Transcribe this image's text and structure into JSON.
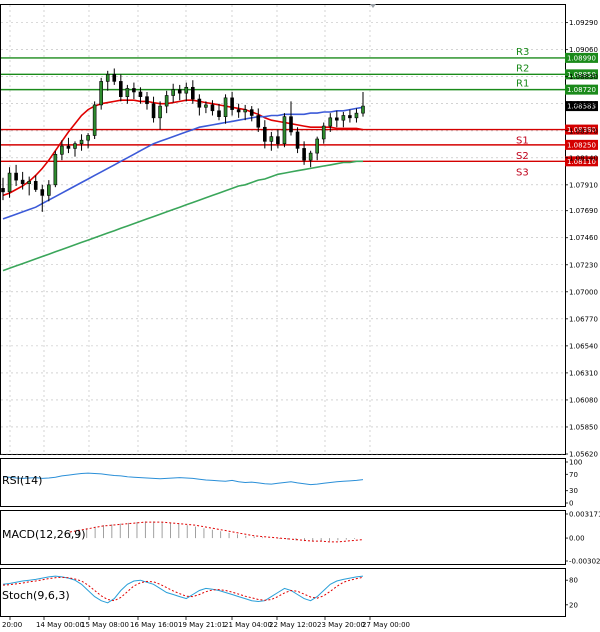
{
  "chart_data": {
    "type": "candlestick",
    "price_axis": {
      "ticks": [
        "1.09290",
        "1.09060",
        "1.08830",
        "1.08600",
        "1.08370",
        "1.08140",
        "1.07910",
        "1.07690",
        "1.07460",
        "1.07230",
        "1.07000",
        "1.06770",
        "1.06540",
        "1.06310",
        "1.06080",
        "1.05850",
        "1.05620"
      ],
      "ylim": [
        1.0562,
        1.0944
      ]
    },
    "time_axis": {
      "ticks": [
        "20:00",
        "14 May 00:00",
        "15 May 08:00",
        "16 May 16:00",
        "19 May 21:01",
        "21 May 04:00",
        "22 May 12:00",
        "23 May 20:00",
        "27 May 00:00"
      ]
    },
    "current_price": "1.08583",
    "levels": [
      {
        "name": "R3",
        "price": 1.0899,
        "label": "1.08990",
        "color": "#1a8a1a"
      },
      {
        "name": "R2",
        "price": 1.0885,
        "label": "1.08850",
        "color": "#1a8a1a"
      },
      {
        "name": "R1",
        "price": 1.0872,
        "label": "1.08720",
        "color": "#1a8a1a"
      },
      {
        "name": "S1",
        "price": 1.0838,
        "label": "1.08380",
        "color": "#d40000"
      },
      {
        "name": "S2",
        "price": 1.0825,
        "label": "1.08250",
        "color": "#d40000"
      },
      {
        "name": "S3",
        "price": 1.0811,
        "label": "1.08110",
        "color": "#d40000"
      }
    ],
    "candles": [
      [
        1.0788,
        1.0797,
        1.0778,
        1.0785
      ],
      [
        1.0785,
        1.0806,
        1.078,
        1.0801
      ],
      [
        1.0801,
        1.0808,
        1.079,
        1.0795
      ],
      [
        1.0795,
        1.0802,
        1.0787,
        1.0792
      ],
      [
        1.0792,
        1.0798,
        1.0782,
        1.0794
      ],
      [
        1.0794,
        1.0799,
        1.0785,
        1.0787
      ],
      [
        1.0787,
        1.0791,
        1.0768,
        1.0782
      ],
      [
        1.0782,
        1.0795,
        1.0777,
        1.0791
      ],
      [
        1.0791,
        1.082,
        1.0789,
        1.0817
      ],
      [
        1.0817,
        1.0829,
        1.0812,
        1.0824
      ],
      [
        1.0824,
        1.0831,
        1.0818,
        1.0822
      ],
      [
        1.0822,
        1.0828,
        1.0815,
        1.0826
      ],
      [
        1.0826,
        1.0834,
        1.082,
        1.0829
      ],
      [
        1.0829,
        1.0835,
        1.0822,
        1.0833
      ],
      [
        1.0833,
        1.0862,
        1.083,
        1.0859
      ],
      [
        1.0859,
        1.0882,
        1.0855,
        1.0879
      ],
      [
        1.0879,
        1.0888,
        1.0871,
        1.0885
      ],
      [
        1.0885,
        1.089,
        1.0876,
        1.0879
      ],
      [
        1.0879,
        1.0885,
        1.0862,
        1.0866
      ],
      [
        1.0866,
        1.0876,
        1.086,
        1.0873
      ],
      [
        1.0873,
        1.0878,
        1.0864,
        1.087
      ],
      [
        1.087,
        1.0874,
        1.086,
        1.0866
      ],
      [
        1.0866,
        1.087,
        1.0855,
        1.086
      ],
      [
        1.086,
        1.0866,
        1.0844,
        1.0848
      ],
      [
        1.0848,
        1.0862,
        1.0838,
        1.0858
      ],
      [
        1.0858,
        1.0871,
        1.0852,
        1.0867
      ],
      [
        1.0867,
        1.0877,
        1.0861,
        1.0872
      ],
      [
        1.0872,
        1.0876,
        1.0863,
        1.0869
      ],
      [
        1.0869,
        1.0878,
        1.0862,
        1.0874
      ],
      [
        1.0874,
        1.088,
        1.086,
        1.0864
      ],
      [
        1.0864,
        1.0868,
        1.085,
        1.0857
      ],
      [
        1.0857,
        1.0862,
        1.0852,
        1.0859
      ],
      [
        1.0859,
        1.0863,
        1.085,
        1.0854
      ],
      [
        1.0854,
        1.086,
        1.0846,
        1.0849
      ],
      [
        1.0849,
        1.0868,
        1.0843,
        1.0865
      ],
      [
        1.0865,
        1.087,
        1.085,
        1.0855
      ],
      [
        1.0855,
        1.086,
        1.0848,
        1.0853
      ],
      [
        1.0853,
        1.0859,
        1.0846,
        1.0855
      ],
      [
        1.0855,
        1.0858,
        1.0845,
        1.085
      ],
      [
        1.085,
        1.0856,
        1.0836,
        1.084
      ],
      [
        1.084,
        1.0846,
        1.0822,
        1.0828
      ],
      [
        1.0828,
        1.0836,
        1.082,
        1.0832
      ],
      [
        1.0832,
        1.0838,
        1.0822,
        1.0826
      ],
      [
        1.0826,
        1.0852,
        1.0823,
        1.0849
      ],
      [
        1.0849,
        1.0862,
        1.0833,
        1.0836
      ],
      [
        1.0836,
        1.084,
        1.0818,
        1.0822
      ],
      [
        1.0822,
        1.0828,
        1.0808,
        1.0812
      ],
      [
        1.0812,
        1.082,
        1.0806,
        1.0818
      ],
      [
        1.0818,
        1.0832,
        1.0812,
        1.083
      ],
      [
        1.083,
        1.0844,
        1.0826,
        1.0841
      ],
      [
        1.0841,
        1.0852,
        1.0836,
        1.0848
      ],
      [
        1.0848,
        1.0854,
        1.084,
        1.0846
      ],
      [
        1.0846,
        1.0853,
        1.084,
        1.085
      ],
      [
        1.085,
        1.0855,
        1.0844,
        1.0848
      ],
      [
        1.0848,
        1.0856,
        1.0844,
        1.0852
      ],
      [
        1.0852,
        1.087,
        1.0849,
        1.0858
      ]
    ],
    "moving_averages": [
      {
        "color": "#e00000",
        "values": [
          1.0782,
          1.0784,
          1.0787,
          1.079,
          1.0794,
          1.0799,
          1.0805,
          1.0812,
          1.082,
          1.0828,
          1.0836,
          1.0843,
          1.085,
          1.0855,
          1.0858,
          1.086,
          1.0861,
          1.0862,
          1.0863,
          1.0863,
          1.0863,
          1.0862,
          1.0862,
          1.0861,
          1.086,
          1.086,
          1.0861,
          1.0862,
          1.0863,
          1.0863,
          1.0862,
          1.0861,
          1.086,
          1.0859,
          1.0858,
          1.0857,
          1.0856,
          1.0855,
          1.0853,
          1.0851,
          1.0848,
          1.0846,
          1.0845,
          1.0844,
          1.0843,
          1.0842,
          1.0841,
          1.084,
          1.084,
          1.084,
          1.084,
          1.0839,
          1.0839,
          1.0839,
          1.0839,
          1.0838
        ]
      },
      {
        "color": "#3c5ad8",
        "values": [
          1.0762,
          1.0764,
          1.0766,
          1.0768,
          1.077,
          1.0772,
          1.0775,
          1.0778,
          1.0781,
          1.0784,
          1.0787,
          1.079,
          1.0793,
          1.0796,
          1.0799,
          1.0802,
          1.0805,
          1.0808,
          1.0811,
          1.0814,
          1.0817,
          1.082,
          1.0823,
          1.0826,
          1.0828,
          1.083,
          1.0832,
          1.0834,
          1.0836,
          1.0838,
          1.084,
          1.0841,
          1.0842,
          1.0843,
          1.0844,
          1.0845,
          1.0846,
          1.0847,
          1.0848,
          1.0849,
          1.0849,
          1.085,
          1.085,
          1.0851,
          1.0851,
          1.0851,
          1.0851,
          1.0852,
          1.0852,
          1.0853,
          1.0853,
          1.0854,
          1.0854,
          1.0855,
          1.0856,
          1.0857
        ]
      },
      {
        "color": "#3aa65a",
        "values": [
          1.0718,
          1.072,
          1.0722,
          1.0724,
          1.0726,
          1.0728,
          1.073,
          1.0732,
          1.0734,
          1.0736,
          1.0738,
          1.074,
          1.0742,
          1.0744,
          1.0746,
          1.0748,
          1.075,
          1.0752,
          1.0754,
          1.0756,
          1.0758,
          1.076,
          1.0762,
          1.0764,
          1.0766,
          1.0768,
          1.077,
          1.0772,
          1.0774,
          1.0776,
          1.0778,
          1.078,
          1.0782,
          1.0784,
          1.0786,
          1.0788,
          1.079,
          1.0791,
          1.0793,
          1.0795,
          1.0796,
          1.0798,
          1.08,
          1.0801,
          1.0802,
          1.0803,
          1.0804,
          1.0805,
          1.0806,
          1.0807,
          1.0808,
          1.0809,
          1.081,
          1.081,
          1.0811,
          1.0811
        ]
      }
    ],
    "indicators": [
      {
        "name": "RSI(14)",
        "ticks": [
          "100",
          "70",
          "30",
          "0"
        ],
        "ylim": [
          0,
          100
        ],
        "series": [
          {
            "color": "#2a8fd8",
            "style": "solid",
            "values": [
              64,
              63,
              61,
              60,
              61,
              62,
              60,
              61,
              63,
              66,
              68,
              70,
              72,
              73,
              72,
              71,
              69,
              67,
              66,
              64,
              63,
              62,
              61,
              60,
              59,
              60,
              61,
              62,
              61,
              60,
              58,
              56,
              55,
              54,
              53,
              55,
              52,
              50,
              51,
              49,
              47,
              46,
              48,
              50,
              52,
              49,
              47,
              45,
              46,
              48,
              50,
              52,
              53,
              54,
              55,
              57
            ]
          }
        ]
      },
      {
        "name": "MACD(12,26,9)",
        "ticks": [
          "0.003171",
          "0.00",
          "-0.00302"
        ],
        "ylim": [
          -0.00302,
          0.003171
        ],
        "series": [
          {
            "style": "histogram",
            "color": "#888888",
            "values": [
              0.0009,
              0.0011,
              0.0013,
              0.0015,
              0.0017,
              0.0018,
              0.0019,
              0.002,
              0.0021,
              0.0022,
              0.0022,
              0.0021,
              0.002,
              0.0019,
              0.0017,
              0.0015,
              0.0013,
              0.0011,
              0.0009,
              0.0007,
              0.0005,
              0.0003,
              0.0002,
              0.0001,
              0.0,
              -0.0001,
              -0.0002,
              -0.0003,
              -0.0004,
              -0.0004,
              -0.0004,
              -0.0004,
              -0.0003,
              -0.0002,
              -0.0001,
              0.0
            ]
          },
          {
            "style": "dotted",
            "color": "#e00000",
            "values": [
              0.0008,
              0.001,
              0.0012,
              0.0014,
              0.0016,
              0.0017,
              0.0018,
              0.0019,
              0.002,
              0.0021,
              0.0021,
              0.0021,
              0.002,
              0.0019,
              0.0018,
              0.0017,
              0.0015,
              0.0013,
              0.0011,
              0.0009,
              0.0007,
              0.0005,
              0.0003,
              0.0002,
              0.0001,
              0.0,
              -0.0001,
              -0.0002,
              -0.0003,
              -0.0004,
              -0.0004,
              -0.0005,
              -0.0005,
              -0.0004,
              -0.0003,
              -0.0002
            ]
          }
        ]
      },
      {
        "name": "Stoch(9,6,3)",
        "ticks": [
          "80",
          "20"
        ],
        "ylim": [
          0,
          100
        ],
        "series": [
          {
            "style": "solid",
            "color": "#2a9fd8",
            "values": [
              70,
              72,
              75,
              78,
              80,
              82,
              85,
              88,
              90,
              88,
              85,
              80,
              70,
              55,
              40,
              30,
              25,
              35,
              55,
              70,
              78,
              80,
              75,
              70,
              60,
              50,
              45,
              40,
              35,
              45,
              55,
              60,
              58,
              55,
              50,
              45,
              40,
              35,
              30,
              28,
              30,
              40,
              50,
              60,
              55,
              45,
              35,
              30,
              40,
              55,
              70,
              78,
              82,
              85,
              88,
              90
            ]
          },
          {
            "style": "dotted",
            "color": "#e00000",
            "values": [
              68,
              69,
              71,
              73,
              76,
              78,
              81,
              84,
              86,
              87,
              86,
              83,
              78,
              68,
              55,
              42,
              33,
              30,
              38,
              52,
              66,
              74,
              77,
              76,
              70,
              62,
              54,
              47,
              41,
              40,
              45,
              52,
              56,
              57,
              55,
              51,
              46,
              41,
              37,
              33,
              31,
              33,
              40,
              49,
              55,
              53,
              46,
              39,
              36,
              42,
              53,
              65,
              75,
              80,
              84,
              87
            ]
          }
        ]
      }
    ]
  }
}
